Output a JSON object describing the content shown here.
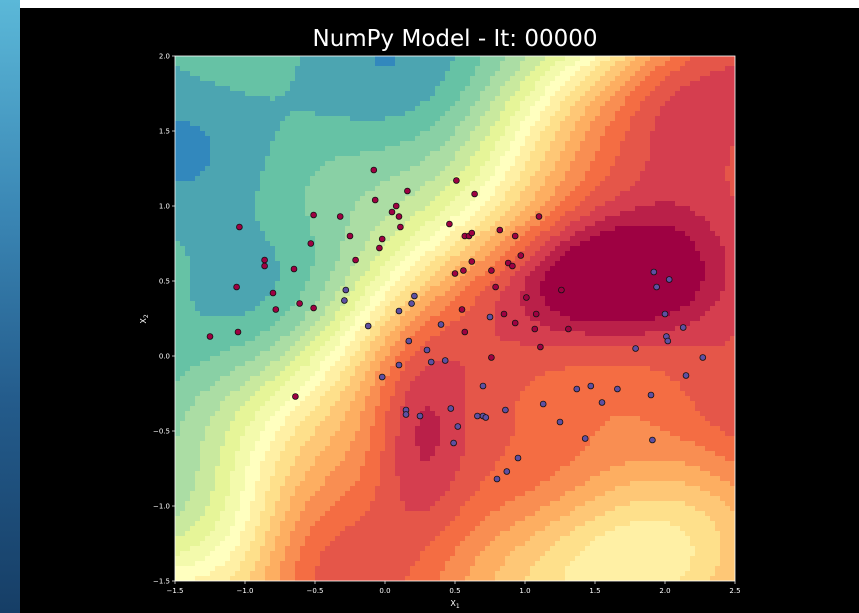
{
  "chart_data": {
    "type": "scatter",
    "title": "NumPy Model - It: 00000",
    "xlabel": "X1",
    "ylabel": "X2",
    "xlim": [
      -1.5,
      2.5
    ],
    "ylim": [
      -1.5,
      2.0
    ],
    "x_ticks": [
      "−1.5",
      "−1.0",
      "−0.5",
      "0.0",
      "0.5",
      "1.0",
      "1.5",
      "2.0",
      "2.5"
    ],
    "y_ticks": [
      "−1.5",
      "−1.0",
      "−0.5",
      "0.0",
      "0.5",
      "1.0",
      "1.5",
      "2.0"
    ],
    "x_tick_values": [
      -1.5,
      -1.0,
      -0.5,
      0.0,
      0.5,
      1.0,
      1.5,
      2.0,
      2.5
    ],
    "y_tick_values": [
      -1.5,
      -1.0,
      -0.5,
      0.0,
      0.5,
      1.0,
      1.5,
      2.0
    ],
    "grid": false,
    "background": "filled contour map (Spectral colormap) of model output",
    "colormap": [
      "#5e4fa2",
      "#3288bd",
      "#66c2a5",
      "#abdda4",
      "#e6f598",
      "#ffffbf",
      "#fee08b",
      "#fdae61",
      "#f46d43",
      "#d53e4f",
      "#9e0142"
    ],
    "series": [
      {
        "class": 0,
        "color": "#9e0142",
        "points": [
          [
            -1.04,
            0.86
          ],
          [
            -1.25,
            0.13
          ],
          [
            -1.05,
            0.16
          ],
          [
            -1.06,
            0.46
          ],
          [
            -0.86,
            0.64
          ],
          [
            -0.86,
            0.6
          ],
          [
            -0.8,
            0.42
          ],
          [
            -0.78,
            0.31
          ],
          [
            -0.65,
            0.58
          ],
          [
            -0.61,
            0.35
          ],
          [
            -0.51,
            0.32
          ],
          [
            -0.53,
            0.75
          ],
          [
            -0.51,
            0.94
          ],
          [
            -0.32,
            0.93
          ],
          [
            -0.25,
            0.8
          ],
          [
            -0.21,
            0.64
          ],
          [
            -0.08,
            1.24
          ],
          [
            -0.07,
            1.04
          ],
          [
            -0.04,
            0.72
          ],
          [
            -0.02,
            0.78
          ],
          [
            0.05,
            0.96
          ],
          [
            0.08,
            1.0
          ],
          [
            0.1,
            0.93
          ],
          [
            0.11,
            0.86
          ],
          [
            0.16,
            1.1
          ],
          [
            -0.64,
            -0.27
          ],
          [
            0.46,
            0.88
          ],
          [
            0.51,
            1.17
          ],
          [
            0.5,
            0.55
          ],
          [
            0.57,
            0.8
          ],
          [
            0.6,
            0.8
          ],
          [
            0.62,
            0.82
          ],
          [
            0.64,
            1.08
          ],
          [
            0.56,
            0.57
          ],
          [
            0.62,
            0.63
          ],
          [
            0.55,
            0.31
          ],
          [
            0.57,
            0.16
          ],
          [
            0.76,
            0.57
          ],
          [
            0.79,
            0.46
          ],
          [
            0.82,
            0.84
          ],
          [
            0.88,
            0.62
          ],
          [
            0.91,
            0.6
          ],
          [
            0.93,
            0.8
          ],
          [
            0.97,
            0.67
          ],
          [
            1.1,
            0.93
          ],
          [
            0.85,
            0.28
          ],
          [
            0.93,
            0.22
          ],
          [
            1.01,
            0.39
          ],
          [
            1.08,
            0.28
          ],
          [
            1.07,
            0.18
          ],
          [
            1.11,
            0.06
          ],
          [
            1.26,
            0.44
          ],
          [
            1.31,
            0.18
          ],
          [
            0.76,
            -0.01
          ]
        ]
      },
      {
        "class": 1,
        "color": "#5e4fa2",
        "points": [
          [
            -0.28,
            0.44
          ],
          [
            -0.29,
            0.37
          ],
          [
            -0.12,
            0.2
          ],
          [
            -0.02,
            -0.14
          ],
          [
            0.1,
            0.3
          ],
          [
            0.1,
            -0.06
          ],
          [
            0.17,
            0.1
          ],
          [
            0.19,
            0.35
          ],
          [
            0.21,
            0.4
          ],
          [
            0.15,
            -0.36
          ],
          [
            0.15,
            -0.39
          ],
          [
            0.25,
            -0.4
          ],
          [
            0.3,
            0.04
          ],
          [
            0.33,
            -0.04
          ],
          [
            0.4,
            0.21
          ],
          [
            0.43,
            -0.03
          ],
          [
            0.47,
            -0.35
          ],
          [
            0.49,
            -0.58
          ],
          [
            0.52,
            -0.47
          ],
          [
            0.66,
            -0.4
          ],
          [
            0.7,
            -0.4
          ],
          [
            0.72,
            -0.41
          ],
          [
            0.7,
            -0.2
          ],
          [
            0.75,
            0.26
          ],
          [
            0.8,
            -0.82
          ],
          [
            0.86,
            -0.36
          ],
          [
            0.87,
            -0.77
          ],
          [
            0.95,
            -0.68
          ],
          [
            1.13,
            -0.32
          ],
          [
            1.25,
            -0.44
          ],
          [
            1.37,
            -0.22
          ],
          [
            1.43,
            -0.55
          ],
          [
            1.47,
            -0.2
          ],
          [
            1.55,
            -0.31
          ],
          [
            1.66,
            -0.22
          ],
          [
            1.79,
            0.05
          ],
          [
            1.9,
            -0.26
          ],
          [
            1.91,
            -0.56
          ],
          [
            1.92,
            0.56
          ],
          [
            1.94,
            0.46
          ],
          [
            2.0,
            0.28
          ],
          [
            2.01,
            0.13
          ],
          [
            2.02,
            0.1
          ],
          [
            2.03,
            0.51
          ],
          [
            2.13,
            0.19
          ],
          [
            2.15,
            -0.13
          ],
          [
            2.27,
            -0.01
          ]
        ]
      }
    ]
  }
}
